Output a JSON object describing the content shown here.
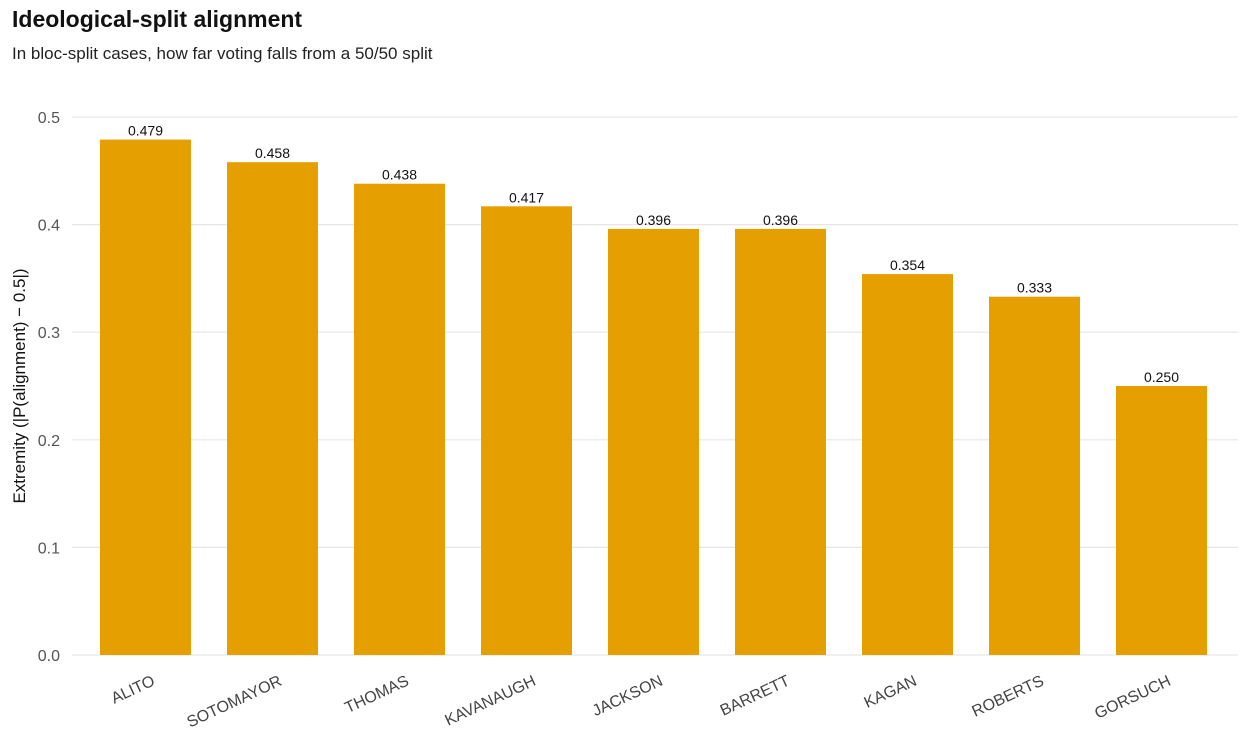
{
  "chart_data": {
    "type": "bar",
    "title": "Ideological-split alignment",
    "subtitle": "In bloc-split cases, how far voting falls from a 50/50 split",
    "xlabel": "",
    "ylabel": "Extremity (|P(alignment) − 0.5|)",
    "categories": [
      "ALITO",
      "SOTOMAYOR",
      "THOMAS",
      "KAVANAUGH",
      "JACKSON",
      "BARRETT",
      "KAGAN",
      "ROBERTS",
      "GORSUCH"
    ],
    "values": [
      0.479,
      0.458,
      0.438,
      0.417,
      0.396,
      0.396,
      0.354,
      0.333,
      0.25
    ],
    "value_labels": [
      "0.479",
      "0.458",
      "0.438",
      "0.417",
      "0.396",
      "0.396",
      "0.354",
      "0.333",
      "0.250"
    ],
    "ylim": [
      0,
      0.5
    ],
    "yticks": [
      0.0,
      0.1,
      0.2,
      0.3,
      0.4,
      0.5
    ],
    "ytick_labels": [
      "0.0",
      "0.1",
      "0.2",
      "0.3",
      "0.4",
      "0.5"
    ],
    "grid": true,
    "legend": "none",
    "bar_color": "#E69F00"
  }
}
